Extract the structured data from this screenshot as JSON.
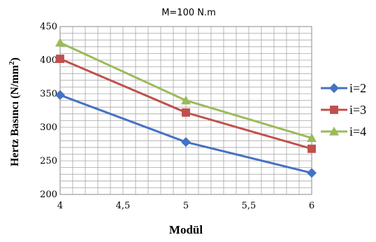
{
  "chart_data": {
    "type": "line",
    "title": "M=100  N.m",
    "xlabel": "Modül",
    "ylabel": "Hertz Basıncı (N/mm",
    "ylabel_sup": "2",
    "ylabel_close": ")",
    "x": [
      4,
      5,
      6
    ],
    "xlim": [
      4,
      6
    ],
    "ylim": [
      200,
      450
    ],
    "x_ticks": [
      "4",
      "4,5",
      "5",
      "5,5",
      "6"
    ],
    "y_ticks": [
      "450",
      "400",
      "350",
      "300",
      "250",
      "200"
    ],
    "grid": true,
    "legend_position": "right",
    "series": [
      {
        "name": "i=2",
        "values": [
          348,
          278,
          232
        ],
        "color": "#4472c4",
        "marker": "diamond"
      },
      {
        "name": "i=3",
        "values": [
          402,
          322,
          268
        ],
        "color": "#c0504d",
        "marker": "square"
      },
      {
        "name": "i=4",
        "values": [
          426,
          340,
          284
        ],
        "color": "#9bbb59",
        "marker": "triangle"
      }
    ]
  }
}
